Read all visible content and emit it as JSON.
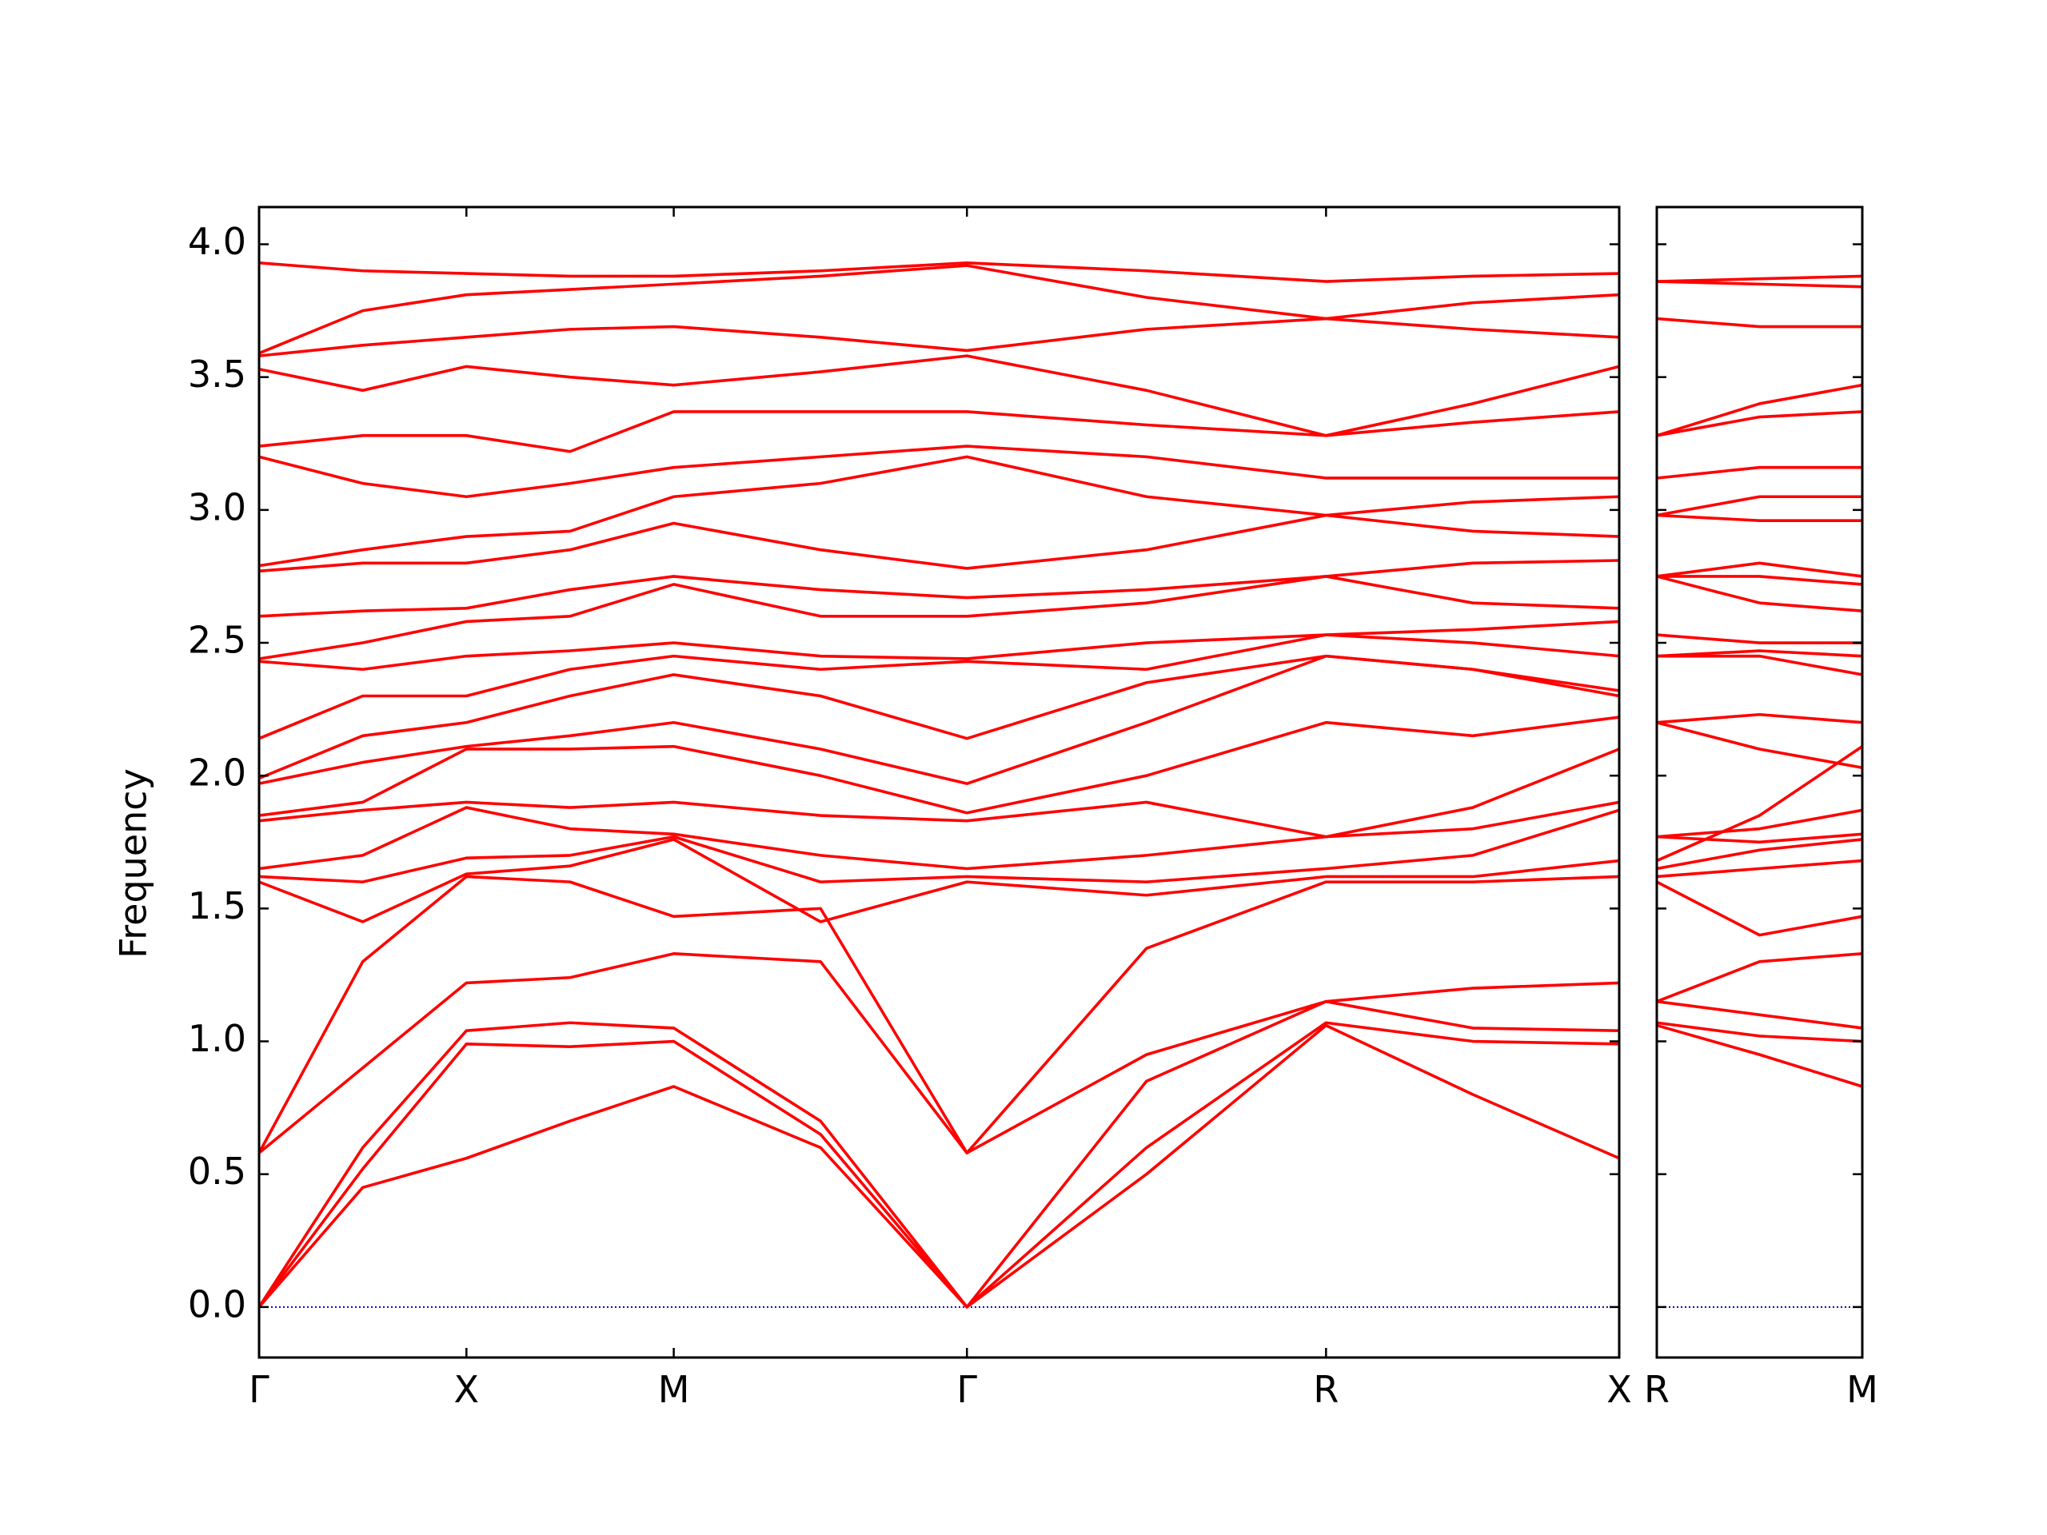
{
  "chart_data": [
    {
      "type": "line",
      "y_label": "Frequency",
      "color": "#ff0000",
      "hline": 0,
      "hline_color": "#0000cc",
      "show_ytick_labels": true,
      "x": [
        0,
        0.25,
        0.5,
        0.75,
        1.0,
        1.354,
        1.707,
        2.14,
        2.573,
        2.927,
        3.28
      ],
      "xlim": [
        0,
        3.28
      ],
      "xticks": [
        {
          "value": 0,
          "label": "Γ"
        },
        {
          "value": 0.5,
          "label": "X"
        },
        {
          "value": 1.0,
          "label": "M"
        },
        {
          "value": 1.707,
          "label": "Γ"
        },
        {
          "value": 2.573,
          "label": "R"
        },
        {
          "value": 3.28,
          "label": "X"
        }
      ],
      "ylim": [
        -0.19,
        4.14
      ],
      "yticks": [
        {
          "value": 0,
          "label": "0.0"
        },
        0.5,
        {
          "value": 1,
          "label": "1.0"
        },
        1.5,
        {
          "value": 2,
          "label": "2.0"
        },
        2.5,
        {
          "value": 3,
          "label": "3.0"
        },
        3.5,
        {
          "value": 4,
          "label": "4.0"
        }
      ],
      "series": [
        {
          "values": [
            0,
            0.45,
            0.56,
            0.7,
            0.83,
            0.6,
            0,
            0.5,
            1.06,
            0.8,
            0.56
          ]
        },
        {
          "values": [
            0,
            0.52,
            0.99,
            0.98,
            1.0,
            0.65,
            0,
            0.6,
            1.07,
            1.0,
            0.99
          ]
        },
        {
          "values": [
            0,
            0.6,
            1.04,
            1.07,
            1.05,
            0.7,
            0,
            0.85,
            1.15,
            1.05,
            1.04
          ]
        },
        {
          "values": [
            0.58,
            0.9,
            1.22,
            1.24,
            1.33,
            1.3,
            0.58,
            0.95,
            1.15,
            1.2,
            1.22
          ]
        },
        {
          "values": [
            0.58,
            1.3,
            1.62,
            1.6,
            1.47,
            1.5,
            0.58,
            1.35,
            1.6,
            1.6,
            1.62
          ]
        },
        {
          "values": [
            1.6,
            1.45,
            1.63,
            1.66,
            1.76,
            1.45,
            1.6,
            1.55,
            1.62,
            1.62,
            1.68
          ]
        },
        {
          "values": [
            1.62,
            1.6,
            1.69,
            1.7,
            1.77,
            1.6,
            1.62,
            1.6,
            1.65,
            1.7,
            1.87
          ]
        },
        {
          "values": [
            1.65,
            1.7,
            1.88,
            1.8,
            1.78,
            1.7,
            1.65,
            1.7,
            1.77,
            1.8,
            1.9
          ]
        },
        {
          "values": [
            1.83,
            1.87,
            1.9,
            1.88,
            1.9,
            1.85,
            1.83,
            1.9,
            1.77,
            1.88,
            2.1
          ]
        },
        {
          "values": [
            1.85,
            1.9,
            2.1,
            2.1,
            2.11,
            2.0,
            1.86,
            2.0,
            2.2,
            2.15,
            2.22
          ]
        },
        {
          "values": [
            1.97,
            2.05,
            2.11,
            2.15,
            2.2,
            2.1,
            1.97,
            2.2,
            2.45,
            2.4,
            2.3
          ]
        },
        {
          "values": [
            1.99,
            2.15,
            2.2,
            2.3,
            2.38,
            2.3,
            2.14,
            2.35,
            2.45,
            2.4,
            2.32
          ]
        },
        {
          "values": [
            2.14,
            2.3,
            2.3,
            2.4,
            2.45,
            2.4,
            2.43,
            2.4,
            2.53,
            2.5,
            2.45
          ]
        },
        {
          "values": [
            2.43,
            2.4,
            2.45,
            2.47,
            2.5,
            2.45,
            2.44,
            2.5,
            2.53,
            2.55,
            2.58
          ]
        },
        {
          "values": [
            2.44,
            2.5,
            2.58,
            2.6,
            2.72,
            2.6,
            2.6,
            2.65,
            2.75,
            2.65,
            2.63
          ]
        },
        {
          "values": [
            2.6,
            2.62,
            2.63,
            2.7,
            2.75,
            2.7,
            2.67,
            2.7,
            2.75,
            2.8,
            2.81
          ]
        },
        {
          "values": [
            2.77,
            2.8,
            2.8,
            2.85,
            2.95,
            2.85,
            2.78,
            2.85,
            2.98,
            2.92,
            2.9
          ]
        },
        {
          "values": [
            2.79,
            2.85,
            2.9,
            2.92,
            3.05,
            3.1,
            3.2,
            3.05,
            2.98,
            3.03,
            3.05
          ]
        },
        {
          "values": [
            3.2,
            3.1,
            3.05,
            3.1,
            3.16,
            3.2,
            3.24,
            3.2,
            3.12,
            3.12,
            3.12
          ]
        },
        {
          "values": [
            3.24,
            3.28,
            3.28,
            3.22,
            3.37,
            3.37,
            3.37,
            3.32,
            3.28,
            3.33,
            3.37
          ]
        },
        {
          "values": [
            3.53,
            3.45,
            3.54,
            3.5,
            3.47,
            3.52,
            3.58,
            3.45,
            3.28,
            3.4,
            3.54
          ]
        },
        {
          "values": [
            3.58,
            3.62,
            3.65,
            3.68,
            3.69,
            3.65,
            3.6,
            3.68,
            3.72,
            3.68,
            3.65
          ]
        },
        {
          "values": [
            3.59,
            3.75,
            3.81,
            3.83,
            3.85,
            3.88,
            3.92,
            3.8,
            3.72,
            3.78,
            3.81
          ]
        },
        {
          "values": [
            3.93,
            3.9,
            3.89,
            3.88,
            3.88,
            3.9,
            3.93,
            3.9,
            3.86,
            3.88,
            3.89
          ]
        }
      ]
    },
    {
      "type": "line",
      "color": "#ff0000",
      "hline": 0,
      "hline_color": "#0000cc",
      "show_ytick_labels": false,
      "x": [
        0,
        0.25,
        0.5
      ],
      "xlim": [
        0,
        0.5
      ],
      "xticks": [
        {
          "value": 0,
          "label": "R"
        },
        {
          "value": 0.5,
          "label": "M"
        }
      ],
      "ylim": [
        -0.19,
        4.14
      ],
      "yticks": [
        0,
        0.5,
        1,
        1.5,
        2,
        2.5,
        3,
        3.5,
        4
      ],
      "series": [
        {
          "values": [
            1.06,
            0.95,
            0.83
          ]
        },
        {
          "values": [
            1.07,
            1.02,
            1.0
          ]
        },
        {
          "values": [
            1.15,
            1.1,
            1.05
          ]
        },
        {
          "values": [
            1.15,
            1.3,
            1.33
          ]
        },
        {
          "values": [
            1.6,
            1.4,
            1.47
          ]
        },
        {
          "values": [
            1.62,
            1.65,
            1.68
          ]
        },
        {
          "values": [
            1.65,
            1.72,
            1.76
          ]
        },
        {
          "values": [
            1.68,
            1.85,
            2.11
          ]
        },
        {
          "values": [
            1.77,
            1.75,
            1.78
          ]
        },
        {
          "values": [
            1.77,
            1.8,
            1.87
          ]
        },
        {
          "values": [
            2.2,
            2.1,
            2.03
          ]
        },
        {
          "values": [
            2.2,
            2.23,
            2.2
          ]
        },
        {
          "values": [
            2.45,
            2.45,
            2.38
          ]
        },
        {
          "values": [
            2.45,
            2.47,
            2.45
          ]
        },
        {
          "values": [
            2.53,
            2.5,
            2.5
          ]
        },
        {
          "values": [
            2.75,
            2.65,
            2.62
          ]
        },
        {
          "values": [
            2.75,
            2.75,
            2.72
          ]
        },
        {
          "values": [
            2.75,
            2.8,
            2.75
          ]
        },
        {
          "values": [
            2.98,
            2.96,
            2.96
          ]
        },
        {
          "values": [
            2.98,
            3.05,
            3.05
          ]
        },
        {
          "values": [
            3.12,
            3.16,
            3.16
          ]
        },
        {
          "values": [
            3.28,
            3.35,
            3.37
          ]
        },
        {
          "values": [
            3.28,
            3.4,
            3.47
          ]
        },
        {
          "values": [
            3.72,
            3.69,
            3.69
          ]
        },
        {
          "values": [
            3.86,
            3.85,
            3.84
          ]
        },
        {
          "values": [
            3.86,
            3.87,
            3.88
          ]
        }
      ]
    }
  ]
}
